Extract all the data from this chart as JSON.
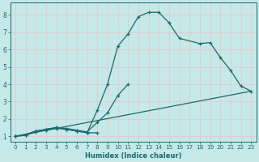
{
  "xlabel": "Humidex (Indice chaleur)",
  "bg_color": "#c5e8e8",
  "grid_color": "#e8c8c8",
  "line_color": "#1a6b6b",
  "xlim": [
    -0.5,
    23.5
  ],
  "ylim": [
    0.7,
    8.7
  ],
  "xticks": [
    0,
    1,
    2,
    3,
    4,
    5,
    6,
    7,
    8,
    9,
    10,
    11,
    12,
    13,
    14,
    15,
    16,
    17,
    18,
    19,
    20,
    21,
    22,
    23
  ],
  "yticks": [
    1,
    2,
    3,
    4,
    5,
    6,
    7,
    8
  ],
  "line1_x": [
    0,
    1,
    2,
    3,
    4,
    5,
    6,
    7,
    8
  ],
  "line1_y": [
    1.0,
    1.05,
    1.3,
    1.35,
    1.45,
    1.4,
    1.3,
    1.2,
    1.2
  ],
  "line2_x": [
    0,
    1,
    2,
    3,
    4,
    5,
    6,
    7,
    8,
    9,
    10,
    11
  ],
  "line2_y": [
    1.0,
    1.1,
    1.3,
    1.4,
    1.5,
    1.45,
    1.35,
    1.25,
    1.8,
    2.35,
    3.35,
    4.0
  ],
  "line3_x": [
    0,
    1,
    2,
    3,
    4,
    5,
    6,
    7,
    8,
    9,
    10,
    11,
    12,
    13,
    14,
    15,
    16,
    18,
    19,
    20,
    21,
    22,
    23
  ],
  "line3_y": [
    1.0,
    1.05,
    1.25,
    1.4,
    1.5,
    1.4,
    1.3,
    1.2,
    2.5,
    4.0,
    6.2,
    6.9,
    7.9,
    8.15,
    8.15,
    7.55,
    6.65,
    6.35,
    6.4,
    5.55,
    4.8,
    3.9,
    3.6
  ],
  "line4_x": [
    0,
    23
  ],
  "line4_y": [
    1.0,
    3.6
  ],
  "xlabel_fontsize": 6.0,
  "tick_fontsize": 5.2
}
